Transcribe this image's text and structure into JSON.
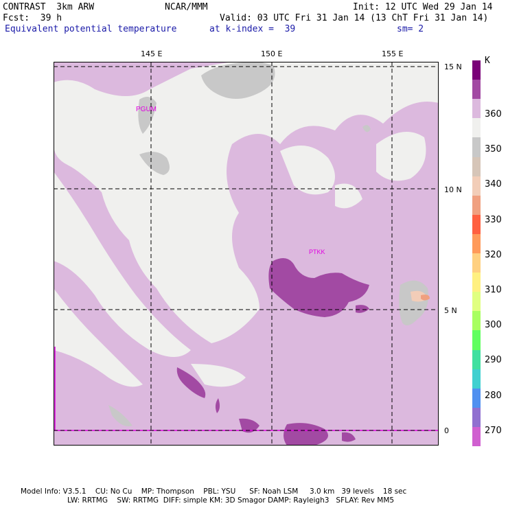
{
  "header": {
    "model": "CONTRAST  3km ARW",
    "org": "NCAR/MMM",
    "init": "Init: 12 UTC Wed 29 Jan 14",
    "fcst": "Fcst:  39 h",
    "valid": "Valid: 03 UTC Fri 31 Jan 14 (13 ChT Fri 31 Jan 14)",
    "field": "Equivalent potential temperature",
    "level": "at k-index =  39",
    "smooth": "sm= 2"
  },
  "axes": {
    "lon_labels": [
      "145 E",
      "150 E",
      "155 E"
    ],
    "lat_labels": [
      "15 N",
      "10 N",
      "5 N",
      "0"
    ]
  },
  "stations": [
    {
      "id": "PGUM"
    },
    {
      "id": "PTKK"
    }
  ],
  "colorbar": {
    "unit": "K",
    "labels": [
      "360",
      "350",
      "340",
      "330",
      "320",
      "310",
      "300",
      "290",
      "280",
      "270"
    ],
    "colors": [
      "#7a0078",
      "#a24aa3",
      "#dcb9de",
      "#f0f0ee",
      "#c8c8c8",
      "#d6c5b8",
      "#f2cdb8",
      "#f0a080",
      "#ff6040",
      "#ff9a5a",
      "#ffd080",
      "#fff080",
      "#e0ff80",
      "#a8ff60",
      "#60ff60",
      "#40e0a0",
      "#40d0d0",
      "#5090f0",
      "#9070d0",
      "#d060d0"
    ]
  },
  "footer": {
    "line1": "Model Info: V3.5.1    CU: No Cu    MP: Thompson    PBL: YSU      SF: Noah LSM     3.0 km   39 levels    18 sec",
    "line2": "LW: RRTMG    SW: RRTMG  DIFF: simple KM: 3D Smagor DAMP: Rayleigh3   SFLAY: Rev MM5"
  }
}
